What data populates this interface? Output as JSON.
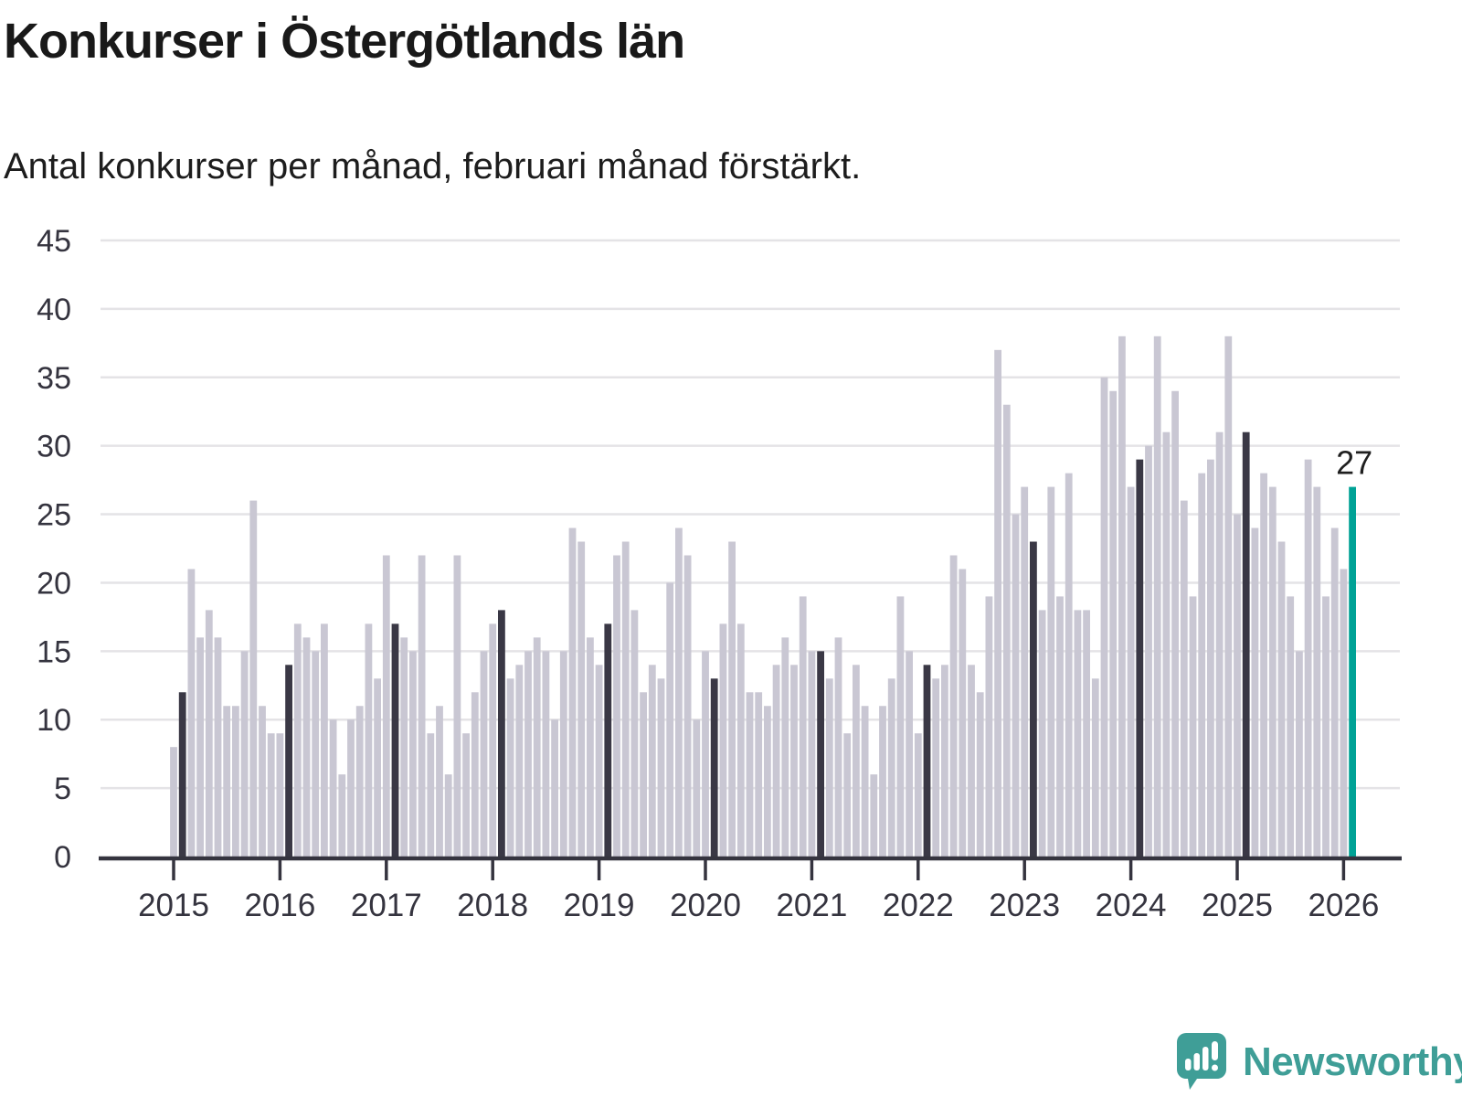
{
  "header": {
    "title": "Konkurser i Östergötlands län",
    "subtitle": "Antal konkurser per månad, februari månad förstärkt."
  },
  "chart_data": {
    "type": "bar",
    "title": "Konkurser i Östergötlands län",
    "subtitle": "Antal konkurser per månad, februari månad förstärkt.",
    "xlabel": "",
    "ylabel": "",
    "ylim": [
      0,
      45
    ],
    "yticks": [
      0,
      5,
      10,
      15,
      20,
      25,
      30,
      35,
      40,
      45
    ],
    "grid": true,
    "legend": "none",
    "x_years": [
      2015,
      2016,
      2017,
      2018,
      2019,
      2020,
      2021,
      2022,
      2023,
      2024,
      2025,
      2026
    ],
    "series": [
      {
        "year": 2015,
        "values": [
          8,
          12,
          21,
          16,
          18,
          16,
          11,
          11,
          15,
          26,
          11,
          9
        ]
      },
      {
        "year": 2016,
        "values": [
          9,
          14,
          17,
          16,
          15,
          17,
          10,
          6,
          10,
          11,
          17,
          13
        ]
      },
      {
        "year": 2017,
        "values": [
          22,
          17,
          16,
          15,
          22,
          9,
          11,
          6,
          22,
          9,
          12,
          15
        ]
      },
      {
        "year": 2018,
        "values": [
          17,
          18,
          13,
          14,
          15,
          16,
          15,
          10,
          15,
          24,
          23,
          16
        ]
      },
      {
        "year": 2019,
        "values": [
          14,
          17,
          22,
          23,
          18,
          12,
          14,
          13,
          20,
          24,
          22,
          10
        ]
      },
      {
        "year": 2020,
        "values": [
          15,
          13,
          17,
          23,
          17,
          12,
          12,
          11,
          14,
          16,
          14,
          19
        ]
      },
      {
        "year": 2021,
        "values": [
          15,
          15,
          13,
          16,
          9,
          14,
          11,
          6,
          11,
          13,
          19,
          15
        ]
      },
      {
        "year": 2022,
        "values": [
          9,
          14,
          13,
          14,
          22,
          21,
          14,
          12,
          19,
          37,
          33,
          25
        ]
      },
      {
        "year": 2023,
        "values": [
          27,
          23,
          18,
          27,
          19,
          28,
          18,
          18,
          13,
          35,
          34,
          38
        ]
      },
      {
        "year": 2024,
        "values": [
          27,
          29,
          30,
          38,
          31,
          34,
          26,
          19,
          28,
          29,
          31,
          38
        ]
      },
      {
        "year": 2025,
        "values": [
          25,
          31,
          24,
          28,
          27,
          23,
          19,
          15,
          29,
          27,
          19,
          24
        ]
      },
      {
        "year": 2026,
        "values": [
          21,
          27
        ]
      }
    ],
    "highlight": {
      "month": "februari",
      "month_index": 1,
      "color": "#3a3845"
    },
    "bar_color": "#c9c7d3",
    "grid_color": "#e4e3e6",
    "axis_color": "#35343f",
    "latest": {
      "year": 2026,
      "month": "februari",
      "value": 27,
      "label": "27",
      "color": "#00a296"
    }
  },
  "footer": {
    "brand": "Newsworthy",
    "brand_color": "#3f9e97",
    "logo_icon": "newsworthy-speech-bubble-chart-icon"
  }
}
